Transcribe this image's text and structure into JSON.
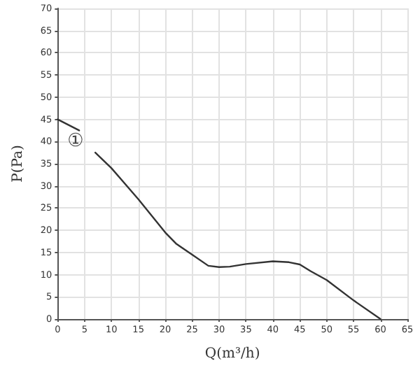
{
  "chart_data": {
    "type": "line",
    "xlabel": "Q(m³/h)",
    "ylabel": "P(Pa)",
    "series": [
      {
        "color": "#333333",
        "x": [
          0,
          4,
          5.5,
          7,
          10,
          15,
          20,
          22,
          25,
          28,
          30,
          32,
          35,
          40,
          43,
          45,
          47,
          50,
          55,
          60
        ],
        "values": [
          45,
          42.5,
          null,
          37.5,
          34,
          27,
          19.5,
          17,
          14.5,
          12,
          11.7,
          11.8,
          12.4,
          13,
          12.8,
          12.3,
          10.8,
          8.8,
          4.2,
          0
        ]
      }
    ],
    "annotations": [
      "①"
    ],
    "xlim": [
      0,
      65
    ],
    "xticks": [
      0,
      5,
      10,
      15,
      20,
      25,
      30,
      35,
      40,
      45,
      50,
      55,
      60,
      65
    ],
    "ylim": [
      0,
      70
    ],
    "yticks": [
      0,
      5,
      10,
      15,
      20,
      25,
      30,
      35,
      40,
      45,
      50,
      55,
      60,
      65,
      70
    ],
    "grid": true,
    "marker": "none",
    "line_style": "solid"
  }
}
